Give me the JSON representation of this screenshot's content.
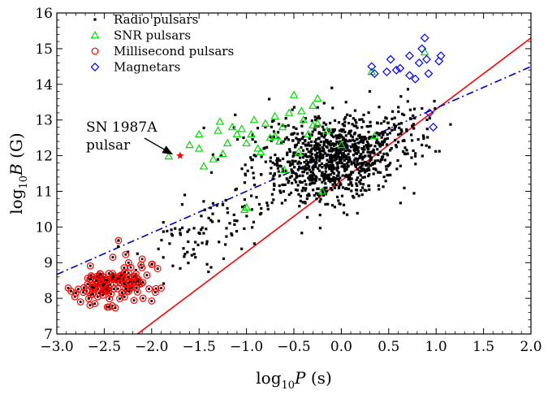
{
  "chart_data": {
    "type": "scatter",
    "xlabel": {
      "base": "log",
      "sub": "10",
      "var": "P",
      "unit": " (s)"
    },
    "ylabel": {
      "base": "log",
      "sub": "10",
      "var": "B",
      "unit": " (G)"
    },
    "xlim": [
      -3.0,
      2.0
    ],
    "ylim": [
      7,
      16
    ],
    "xticks": [
      -3.0,
      -2.5,
      -2.0,
      -1.5,
      -1.0,
      -0.5,
      0.0,
      0.5,
      1.0,
      1.5,
      2.0
    ],
    "xtick_labels": [
      "−3.0",
      "−2.5",
      "−2.0",
      "−1.5",
      "−1.0",
      "−0.5",
      "0.0",
      "0.5",
      "1.0",
      "1.5",
      "2.0"
    ],
    "yticks": [
      7,
      8,
      9,
      10,
      11,
      12,
      13,
      14,
      15,
      16
    ],
    "ytick_labels": [
      "7",
      "8",
      "9",
      "10",
      "11",
      "12",
      "13",
      "14",
      "15",
      "16"
    ],
    "legend_position": "top-left",
    "series": [
      {
        "name": "Radio pulsars",
        "marker": "square",
        "color": "#000000",
        "clusters": [
          {
            "cx": -0.05,
            "cy": 11.9,
            "sx": 0.3,
            "sy": 0.48,
            "n": 620
          },
          {
            "cx": -0.35,
            "cy": 11.4,
            "sx": 0.35,
            "sy": 0.55,
            "n": 180
          },
          {
            "cx": 0.35,
            "cy": 12.5,
            "sx": 0.3,
            "sy": 0.4,
            "n": 140
          },
          {
            "cx": -0.55,
            "cy": 12.6,
            "sx": 0.3,
            "sy": 0.45,
            "n": 60
          },
          {
            "cx": -1.3,
            "cy": 10.0,
            "sx": 0.22,
            "sy": 0.4,
            "n": 45
          },
          {
            "cx": -1.6,
            "cy": 9.4,
            "sx": 0.2,
            "sy": 0.35,
            "n": 35
          },
          {
            "cx": -0.95,
            "cy": 11.4,
            "sx": 0.2,
            "sy": 0.5,
            "n": 30
          },
          {
            "cx": 0.75,
            "cy": 12.9,
            "sx": 0.2,
            "sy": 0.4,
            "n": 30
          }
        ],
        "points": [
          [
            -2.35,
            9.62
          ],
          [
            -2.25,
            9.3
          ],
          [
            -2.15,
            9.25
          ],
          [
            0.85,
            12.3
          ],
          [
            0.05,
            13.5
          ],
          [
            -0.1,
            13.9
          ],
          [
            0.3,
            13.8
          ],
          [
            -0.8,
            12.8
          ]
        ]
      },
      {
        "name": "SNR pulsars",
        "marker": "triangle",
        "color": "#00dd00",
        "points": [
          [
            -1.82,
            11.98
          ],
          [
            -1.5,
            12.2
          ],
          [
            -1.45,
            11.7
          ],
          [
            -1.3,
            12.7
          ],
          [
            -1.25,
            12.05
          ],
          [
            -1.2,
            12.35
          ],
          [
            -1.15,
            12.8
          ],
          [
            -1.1,
            12.6
          ],
          [
            -1.05,
            12.75
          ],
          [
            -1.0,
            12.35
          ],
          [
            -0.95,
            12.6
          ],
          [
            -0.92,
            13.0
          ],
          [
            -0.85,
            12.1
          ],
          [
            -0.8,
            12.9
          ],
          [
            -0.75,
            12.5
          ],
          [
            -0.7,
            13.1
          ],
          [
            -0.65,
            12.4
          ],
          [
            -0.62,
            12.8
          ],
          [
            -0.55,
            13.2
          ],
          [
            -0.5,
            13.7
          ],
          [
            -0.45,
            12.1
          ],
          [
            -0.4,
            13.0
          ],
          [
            -0.35,
            12.6
          ],
          [
            -0.3,
            13.4
          ],
          [
            -0.25,
            12.9
          ],
          [
            -0.2,
            11.0
          ],
          [
            -0.15,
            12.7
          ],
          [
            -1.5,
            12.6
          ],
          [
            -1.35,
            11.9
          ],
          [
            -1.0,
            10.55
          ],
          [
            -1.02,
            10.48
          ],
          [
            -0.6,
            11.6
          ],
          [
            -0.25,
            13.6
          ],
          [
            0.0,
            12.3
          ],
          [
            0.32,
            14.35
          ],
          [
            0.35,
            12.55
          ],
          [
            0.88,
            14.9
          ],
          [
            -1.6,
            12.3
          ],
          [
            -1.28,
            12.95
          ],
          [
            -0.88,
            12.2
          ],
          [
            -0.42,
            13.25
          ],
          [
            -0.7,
            12.55
          ],
          [
            -0.3,
            12.85
          ]
        ]
      },
      {
        "name": "Millisecond pulsars",
        "marker": "circle",
        "color": "#ff0000",
        "clusters": [
          {
            "cx": -2.45,
            "cy": 8.35,
            "sx": 0.18,
            "sy": 0.25,
            "n": 110
          },
          {
            "cx": -2.2,
            "cy": 8.55,
            "sx": 0.18,
            "sy": 0.25,
            "n": 30
          }
        ],
        "points": [
          [
            -2.85,
            8.2
          ],
          [
            -2.8,
            8.15
          ],
          [
            -2.35,
            9.62
          ],
          [
            -2.1,
            9.1
          ],
          [
            -2.0,
            8.95
          ],
          [
            -2.05,
            8.65
          ],
          [
            -2.75,
            7.9
          ],
          [
            -2.6,
            7.85
          ]
        ]
      },
      {
        "name": "Magnetars",
        "marker": "diamond",
        "color": "#0000ff",
        "points": [
          [
            0.32,
            14.5
          ],
          [
            0.35,
            14.3
          ],
          [
            0.48,
            14.35
          ],
          [
            0.52,
            14.7
          ],
          [
            0.58,
            14.4
          ],
          [
            0.62,
            14.45
          ],
          [
            0.72,
            14.25
          ],
          [
            0.72,
            14.8
          ],
          [
            0.78,
            14.15
          ],
          [
            0.82,
            14.6
          ],
          [
            0.85,
            15.0
          ],
          [
            0.88,
            15.3
          ],
          [
            0.9,
            14.7
          ],
          [
            0.92,
            14.3
          ],
          [
            0.93,
            13.2
          ],
          [
            0.97,
            12.8
          ],
          [
            1.03,
            14.65
          ],
          [
            1.05,
            14.8
          ]
        ]
      }
    ],
    "special_points": [
      {
        "label": "SN 1987A pulsar",
        "x": -1.7,
        "y": 12.0,
        "marker": "star",
        "color": "#ff0000"
      }
    ],
    "lines": [
      {
        "style": "solid",
        "color": "#ff0000",
        "x": [
          -2.2,
          2.0
        ],
        "y": [
          6.9,
          15.3
        ]
      },
      {
        "style": "dashdot",
        "color": "#0000cc",
        "x": [
          -3.0,
          2.0
        ],
        "y": [
          8.67,
          14.5
        ]
      }
    ],
    "annotation": {
      "lines": [
        "SN 1987A",
        "pulsar"
      ],
      "arrow_to": [
        -1.75,
        12.0
      ]
    }
  }
}
